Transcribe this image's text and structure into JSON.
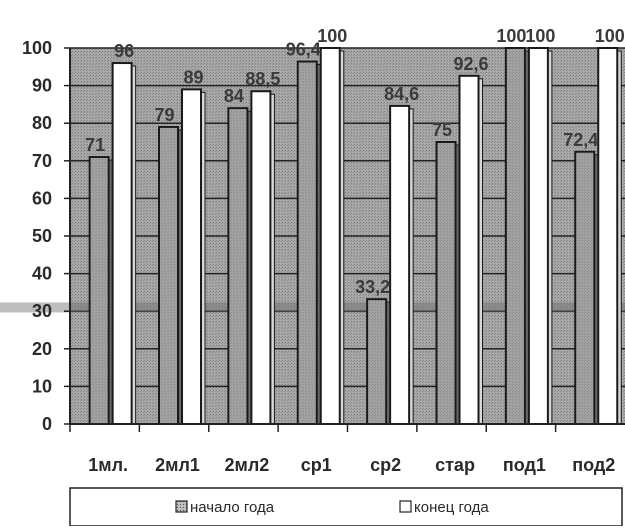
{
  "chart_data": {
    "type": "bar",
    "categories": [
      "1мл.",
      "2мл1",
      "2мл2",
      "ср1",
      "ср2",
      "стар",
      "под1",
      "под2"
    ],
    "series": [
      {
        "name": "начало года",
        "values": [
          71,
          79,
          84,
          96.4,
          33.2,
          75,
          100,
          72.4
        ]
      },
      {
        "name": "конец года",
        "values": [
          96,
          89,
          88.5,
          100,
          84.6,
          92.6,
          100,
          100
        ]
      }
    ],
    "data_labels": [
      [
        "71",
        "79",
        "84",
        "96,4",
        "33,2",
        "75",
        "100",
        "72,4"
      ],
      [
        "96",
        "89",
        "88,5",
        "100",
        "84,6",
        "92,6",
        "100",
        "100"
      ]
    ],
    "y_ticks": [
      "0",
      "10",
      "20",
      "30",
      "40",
      "50",
      "60",
      "70",
      "80",
      "90",
      "100"
    ],
    "ylim": [
      0,
      100
    ],
    "grid": true,
    "legend_position": "bottom",
    "title": "",
    "xlabel": "",
    "ylabel": "",
    "colors": {
      "series_start_fill": "#9a9a9a",
      "series_end_fill": "#ffffff",
      "plot_background": "#c4c4c4",
      "bar_stroke": "#1a1a1a"
    }
  }
}
